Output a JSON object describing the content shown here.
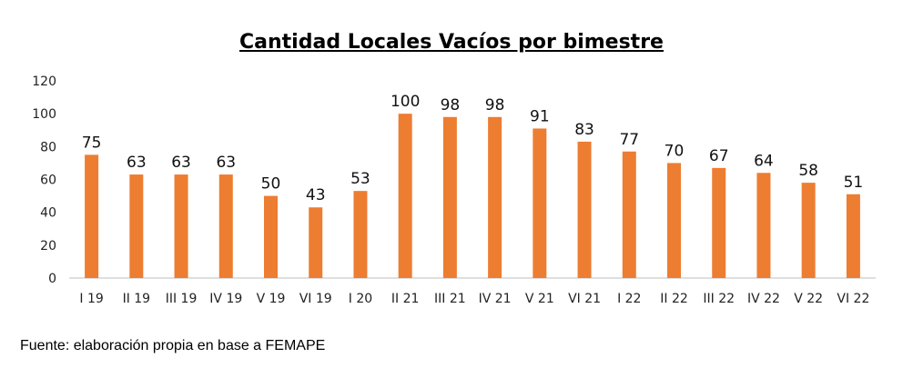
{
  "chart_data": {
    "type": "bar",
    "title": "Cantidad Locales Vacíos por bimestre",
    "xlabel": "",
    "ylabel": "",
    "ylim": [
      0,
      120
    ],
    "yticks": [
      0,
      20,
      40,
      60,
      80,
      100,
      120
    ],
    "grid": false,
    "legend": "none",
    "bar_color": "#ED7D31",
    "categories": [
      "I 19",
      "II 19",
      "III 19",
      "IV 19",
      "V 19",
      "VI 19",
      "I 20",
      "II 21",
      "III 21",
      "IV 21",
      "V 21",
      "VI 21",
      "I 22",
      "II 22",
      "III 22",
      "IV 22",
      "V 22",
      "VI 22"
    ],
    "values": [
      75,
      63,
      63,
      63,
      50,
      43,
      53,
      100,
      98,
      98,
      91,
      83,
      77,
      70,
      67,
      64,
      58,
      51
    ]
  },
  "source": "Fuente: elaboración propia en base a FEMAPE"
}
